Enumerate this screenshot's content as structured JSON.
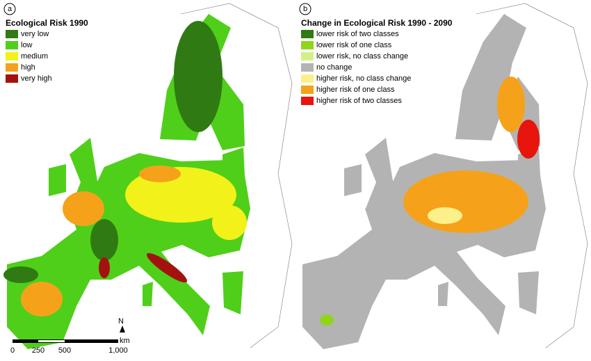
{
  "panels": [
    {
      "label": "a",
      "title": "Ecological Risk 1990",
      "legend": [
        {
          "label": "very low",
          "color": "#2f7a12"
        },
        {
          "label": "low",
          "color": "#4fcf1a"
        },
        {
          "label": "medium",
          "color": "#f2f21a"
        },
        {
          "label": "high",
          "color": "#f5a21a"
        },
        {
          "label": "very high",
          "color": "#a3120e"
        }
      ]
    },
    {
      "label": "b",
      "title": "Change in Ecological Risk 1990 - 2090",
      "legend": [
        {
          "label": "lower risk of two classes",
          "color": "#2f7a12"
        },
        {
          "label": "lower risk of one class",
          "color": "#8fd61a"
        },
        {
          "label": "lower risk, no class change",
          "color": "#d2f08a"
        },
        {
          "label": "no change",
          "color": "#b3b3b3"
        },
        {
          "label": "higher risk, no class change",
          "color": "#fbf08a"
        },
        {
          "label": "higher risk of one class",
          "color": "#f5a21a"
        },
        {
          "label": "higher risk of two classes",
          "color": "#e8140e"
        }
      ]
    }
  ],
  "scale_bar": {
    "ticks": [
      "0",
      "250",
      "500",
      "1,000"
    ],
    "unit": "km"
  },
  "north_arrow": "N"
}
